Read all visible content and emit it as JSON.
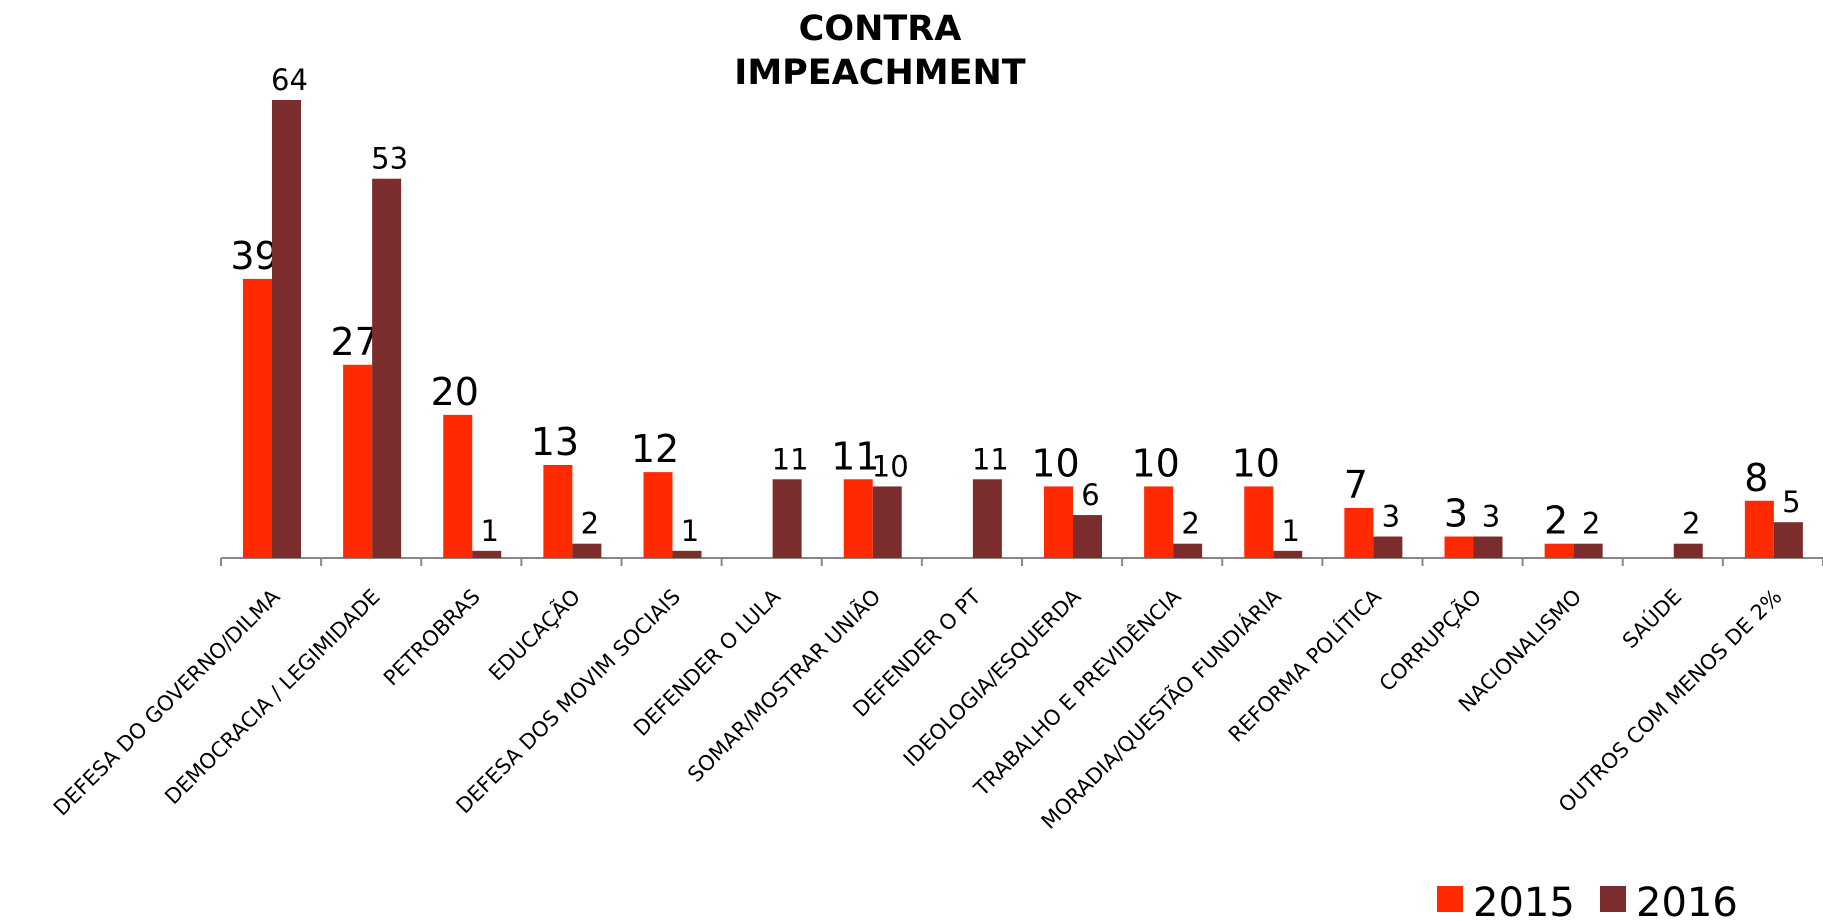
{
  "chart_data": {
    "type": "bar",
    "title": [
      "CONTRA",
      "IMPEACHMENT"
    ],
    "categories": [
      "DEFESA DO GOVERNO/DILMA",
      "DEMOCRACIA / LEGIMIDADE",
      "PETROBRAS",
      "EDUCAÇÃO",
      "DEFESA DOS MOVIM SOCIAIS",
      "DEFENDER O LULA",
      "SOMAR/MOSTRAR UNIÃO",
      "DEFENDER O PT",
      "IDEOLOGIA/ESQUERDA",
      "TRABALHO E PREVIDÊNCIA",
      "MORADIA/QUESTÃO FUNDIÁRIA",
      "REFORMA POLÍTICA",
      "CORRUPÇÃO",
      "NACIONALISMO",
      "SAÚDE",
      "OUTROS COM MENOS DE 2%"
    ],
    "series": [
      {
        "name": "2015",
        "color": "#ff2a00",
        "values": [
          39,
          27,
          20,
          13,
          12,
          null,
          11,
          null,
          10,
          10,
          10,
          7,
          3,
          2,
          null,
          8
        ]
      },
      {
        "name": "2016",
        "color": "#7b2d2d",
        "values": [
          64,
          53,
          1,
          2,
          1,
          11,
          10,
          11,
          6,
          2,
          1,
          3,
          3,
          2,
          2,
          5
        ]
      }
    ],
    "legend": "bottom-right"
  }
}
